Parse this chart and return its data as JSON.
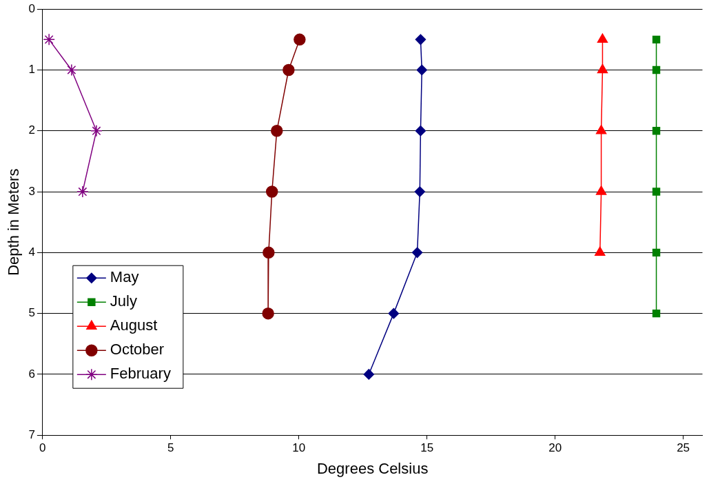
{
  "chart_data": {
    "type": "line",
    "xlabel": "Degrees Celsius",
    "ylabel": "Depth in Meters",
    "xlim": [
      0,
      25.75
    ],
    "xticks": [
      0,
      5,
      10,
      15,
      20,
      25
    ],
    "ylim": [
      7,
      0
    ],
    "yticks": [
      0,
      1,
      2,
      3,
      4,
      5,
      6,
      7
    ],
    "grid": "y",
    "legend": "bottom left",
    "line_style": "solid",
    "series": [
      {
        "name": "May",
        "color": "#000080",
        "marker": "diamond",
        "x": [
          14.75,
          14.8,
          14.75,
          14.72,
          14.62,
          13.7,
          12.73
        ],
        "values": [
          0.5,
          1,
          2,
          3,
          4,
          5,
          6
        ]
      },
      {
        "name": "July",
        "color": "#008000",
        "marker": "square",
        "x": [
          23.95,
          23.95,
          23.95,
          23.95,
          23.95,
          23.95
        ],
        "values": [
          0.5,
          1,
          2,
          3,
          4,
          5
        ]
      },
      {
        "name": "August",
        "color": "#ff0000",
        "marker": "triangle",
        "x": [
          21.85,
          21.85,
          21.8,
          21.8,
          21.75
        ],
        "values": [
          0.5,
          1,
          2,
          3,
          4
        ]
      },
      {
        "name": "October",
        "color": "#800000",
        "marker": "circle",
        "x": [
          10.03,
          9.6,
          9.14,
          8.95,
          8.82,
          8.8
        ],
        "values": [
          0.5,
          1,
          2,
          3,
          4,
          5
        ]
      },
      {
        "name": "February",
        "color": "#800080",
        "marker": "cross",
        "x": [
          0.25,
          1.13,
          2.1,
          1.56
        ],
        "values": [
          0.5,
          1,
          2,
          3
        ]
      }
    ]
  }
}
